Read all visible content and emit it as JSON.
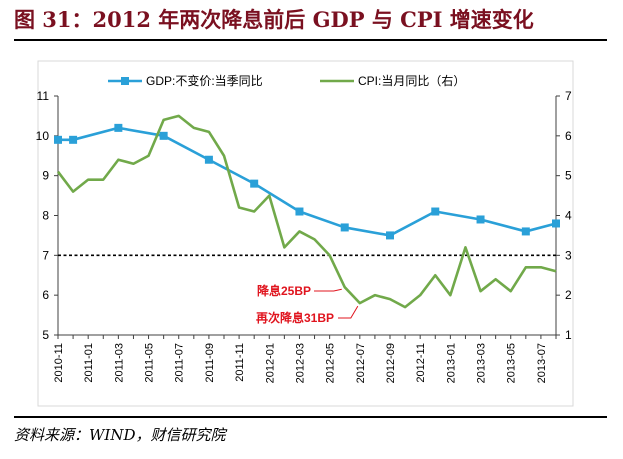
{
  "title": "图 31：2012 年两次降息前后 GDP 与 CPI 增速变化",
  "source": "资料来源：WIND，财信研究院",
  "chart_data": {
    "type": "line",
    "x": [
      "2010-11",
      "2010-12",
      "2011-01",
      "2011-02",
      "2011-03",
      "2011-04",
      "2011-05",
      "2011-06",
      "2011-07",
      "2011-08",
      "2011-09",
      "2011-10",
      "2011-11",
      "2011-12",
      "2012-01",
      "2012-02",
      "2012-03",
      "2012-04",
      "2012-05",
      "2012-06",
      "2012-07",
      "2012-08",
      "2012-09",
      "2012-10",
      "2012-11",
      "2012-12",
      "2013-01",
      "2013-02",
      "2013-03",
      "2013-04",
      "2013-05",
      "2013-06",
      "2013-07",
      "2013-08"
    ],
    "x_tick_labels": [
      "2010-11",
      "2011-01",
      "2011-03",
      "2011-05",
      "2011-07",
      "2011-09",
      "2011-11",
      "2012-01",
      "2012-03",
      "2012-05",
      "2012-07",
      "2012-09",
      "2012-11",
      "2013-01",
      "2013-03",
      "2013-05",
      "2013-07"
    ],
    "y_ticks_left": [
      "5",
      "6",
      "7",
      "8",
      "9",
      "10",
      "11"
    ],
    "y_ticks_right": [
      "1",
      "2",
      "3",
      "4",
      "5",
      "6",
      "7"
    ],
    "ylim_left": [
      5,
      11
    ],
    "ylim_right": [
      1,
      7
    ],
    "reference_line": {
      "axis": "left",
      "value": 7,
      "style": "dashed"
    },
    "series": [
      {
        "name": "GDP:不变价:当季同比",
        "axis": "left",
        "color": "#2aa0d8",
        "marker": "square",
        "points": [
          {
            "x": "2010-11",
            "y": 9.9
          },
          {
            "x": "2010-12",
            "y": 9.9
          },
          {
            "x": "2011-03",
            "y": 10.2
          },
          {
            "x": "2011-06",
            "y": 10.0
          },
          {
            "x": "2011-09",
            "y": 9.4
          },
          {
            "x": "2011-12",
            "y": 8.8
          },
          {
            "x": "2012-03",
            "y": 8.1
          },
          {
            "x": "2012-06",
            "y": 7.7
          },
          {
            "x": "2012-09",
            "y": 7.5
          },
          {
            "x": "2012-12",
            "y": 8.1
          },
          {
            "x": "2013-03",
            "y": 7.9
          },
          {
            "x": "2013-06",
            "y": 7.6
          },
          {
            "x": "2013-08",
            "y": 7.8
          }
        ]
      },
      {
        "name": "CPI:当月同比（右）",
        "axis": "right",
        "color": "#71a94a",
        "marker": "none",
        "points": [
          {
            "x": "2010-11",
            "y": 5.1
          },
          {
            "x": "2010-12",
            "y": 4.6
          },
          {
            "x": "2011-01",
            "y": 4.9
          },
          {
            "x": "2011-02",
            "y": 4.9
          },
          {
            "x": "2011-03",
            "y": 5.4
          },
          {
            "x": "2011-04",
            "y": 5.3
          },
          {
            "x": "2011-05",
            "y": 5.5
          },
          {
            "x": "2011-06",
            "y": 6.4
          },
          {
            "x": "2011-07",
            "y": 6.5
          },
          {
            "x": "2011-08",
            "y": 6.2
          },
          {
            "x": "2011-09",
            "y": 6.1
          },
          {
            "x": "2011-10",
            "y": 5.5
          },
          {
            "x": "2011-11",
            "y": 4.2
          },
          {
            "x": "2011-12",
            "y": 4.1
          },
          {
            "x": "2012-01",
            "y": 4.5
          },
          {
            "x": "2012-02",
            "y": 3.2
          },
          {
            "x": "2012-03",
            "y": 3.6
          },
          {
            "x": "2012-04",
            "y": 3.4
          },
          {
            "x": "2012-05",
            "y": 3.0
          },
          {
            "x": "2012-06",
            "y": 2.2
          },
          {
            "x": "2012-07",
            "y": 1.8
          },
          {
            "x": "2012-08",
            "y": 2.0
          },
          {
            "x": "2012-09",
            "y": 1.9
          },
          {
            "x": "2012-10",
            "y": 1.7
          },
          {
            "x": "2012-11",
            "y": 2.0
          },
          {
            "x": "2012-12",
            "y": 2.5
          },
          {
            "x": "2013-01",
            "y": 2.0
          },
          {
            "x": "2013-02",
            "y": 3.2
          },
          {
            "x": "2013-03",
            "y": 2.1
          },
          {
            "x": "2013-04",
            "y": 2.4
          },
          {
            "x": "2013-05",
            "y": 2.1
          },
          {
            "x": "2013-06",
            "y": 2.7
          },
          {
            "x": "2013-07",
            "y": 2.7
          },
          {
            "x": "2013-08",
            "y": 2.6
          }
        ]
      }
    ],
    "annotations": [
      {
        "text": "降息25BP",
        "x": "2012-06",
        "color": "#e0141e"
      },
      {
        "text": "再次降息31BP",
        "x": "2012-07",
        "color": "#e0141e"
      }
    ],
    "legend_position": "top",
    "grid": false
  }
}
